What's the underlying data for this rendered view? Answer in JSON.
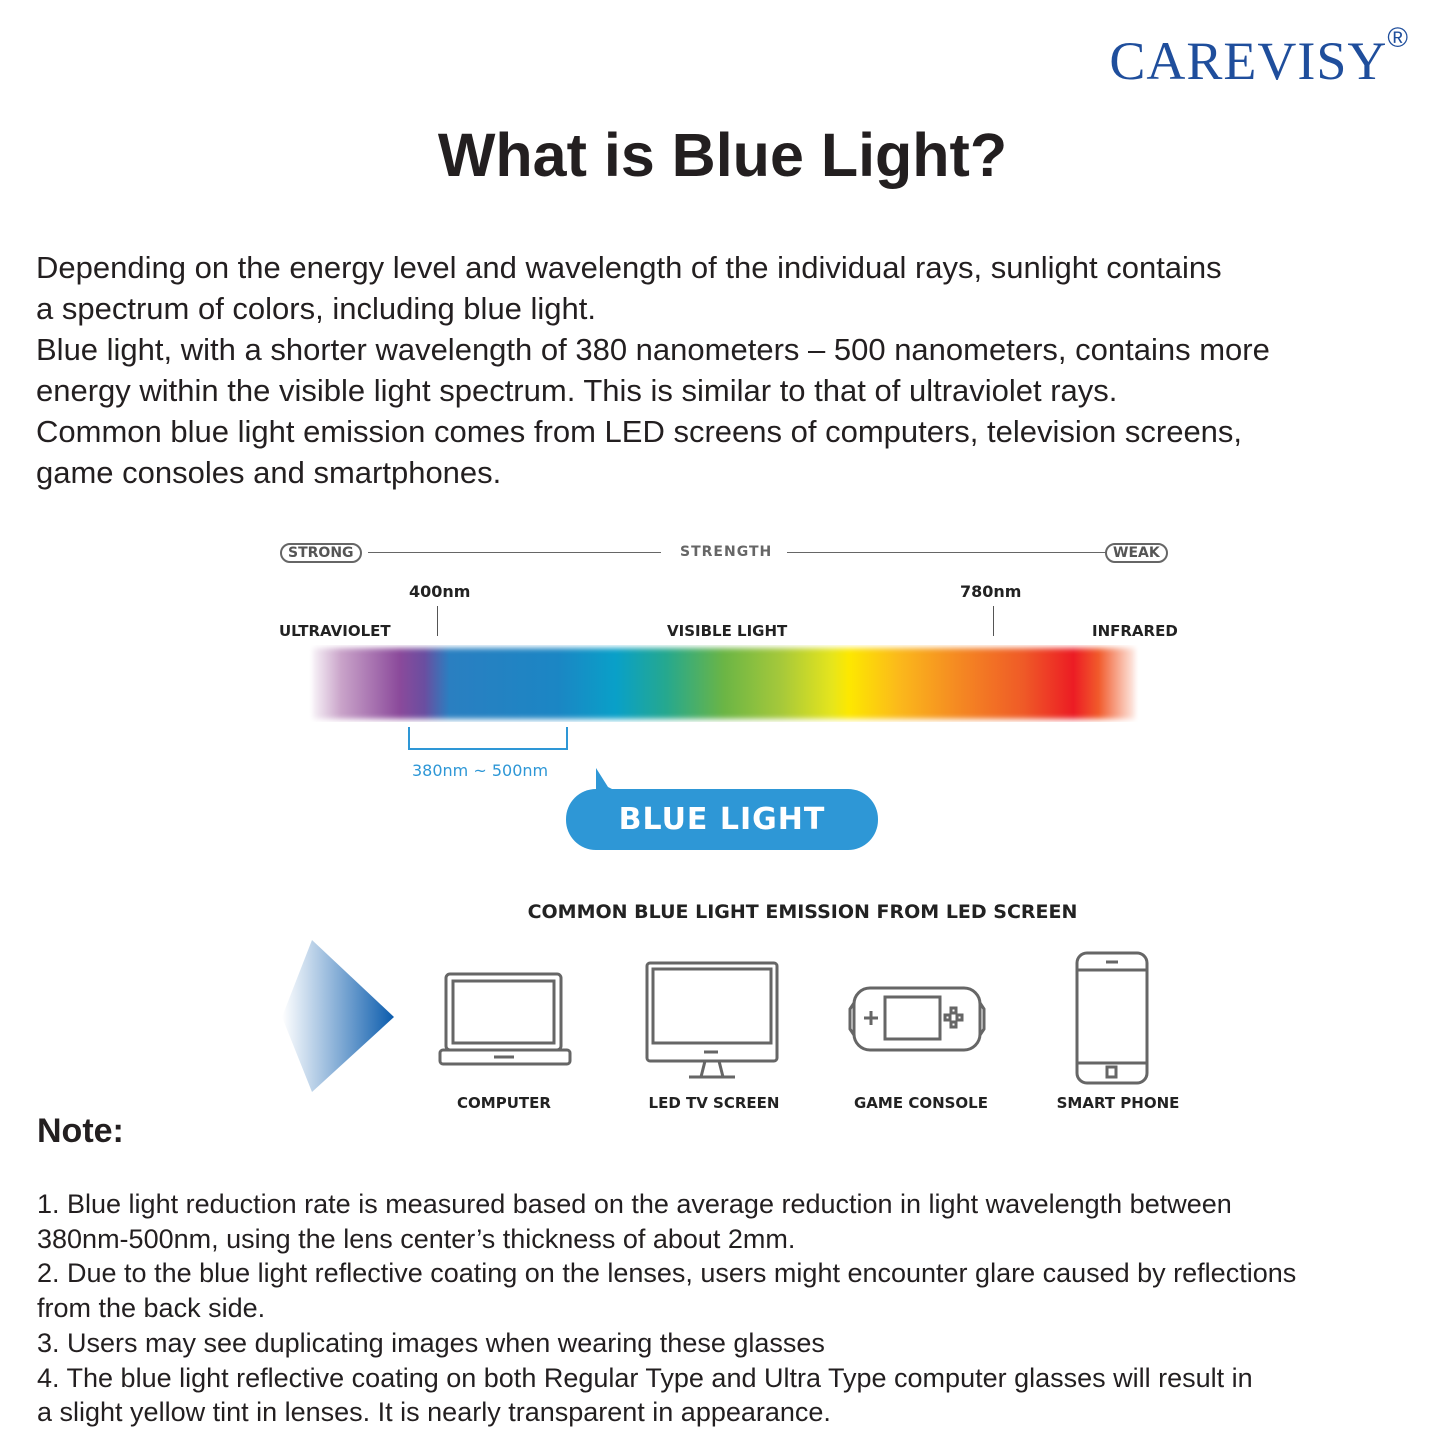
{
  "brand": {
    "name": "CAREVISY",
    "mark": "®",
    "color": "#1f4e9c"
  },
  "title": "What is Blue Light?",
  "intro_lines": [
    "Depending on the energy level and wavelength of the individual rays, sunlight contains",
    "a spectrum of colors, including blue light.",
    "Blue light, with a shorter wavelength of 380 nanometers – 500 nanometers, contains more",
    "energy within the visible light spectrum. This is similar to that of ultraviolet rays.",
    "Common blue light emission comes from LED screens of computers, television screens,",
    "game consoles and smartphones."
  ],
  "diagram": {
    "strong": "STRONG",
    "strength": "STRENGTH",
    "weak": "WEAK",
    "mark_400": "400nm",
    "mark_780": "780nm",
    "ultraviolet": "ULTRAVIOLET",
    "visible": "VISIBLE LIGHT",
    "infrared": "INFRARED",
    "range": "380nm ~ 500nm",
    "bubble": "BLUE LIGHT",
    "accent": "#2e97d6"
  },
  "devices": {
    "heading": "COMMON BLUE LIGHT EMISSION FROM LED SCREEN",
    "items": [
      {
        "label": "COMPUTER",
        "icon": "laptop-icon"
      },
      {
        "label": "LED TV SCREEN",
        "icon": "monitor-icon"
      },
      {
        "label": "GAME CONSOLE",
        "icon": "game-console-icon"
      },
      {
        "label": "SMART PHONE",
        "icon": "smartphone-icon"
      }
    ]
  },
  "note": {
    "heading": "Note:",
    "lines": [
      "1. Blue light reduction rate is measured based on the average reduction in light wavelength between",
      "380nm-500nm, using the lens center’s thickness of about 2mm.",
      "2. Due to the blue light reflective coating on the lenses, users might encounter glare caused by reflections",
      "from the back side.",
      "3. Users may see duplicating images when wearing these glasses",
      "4. The blue light reflective coating on both Regular Type and Ultra Type computer glasses will result in",
      "a slight yellow tint in lenses. It is nearly transparent in appearance."
    ]
  }
}
